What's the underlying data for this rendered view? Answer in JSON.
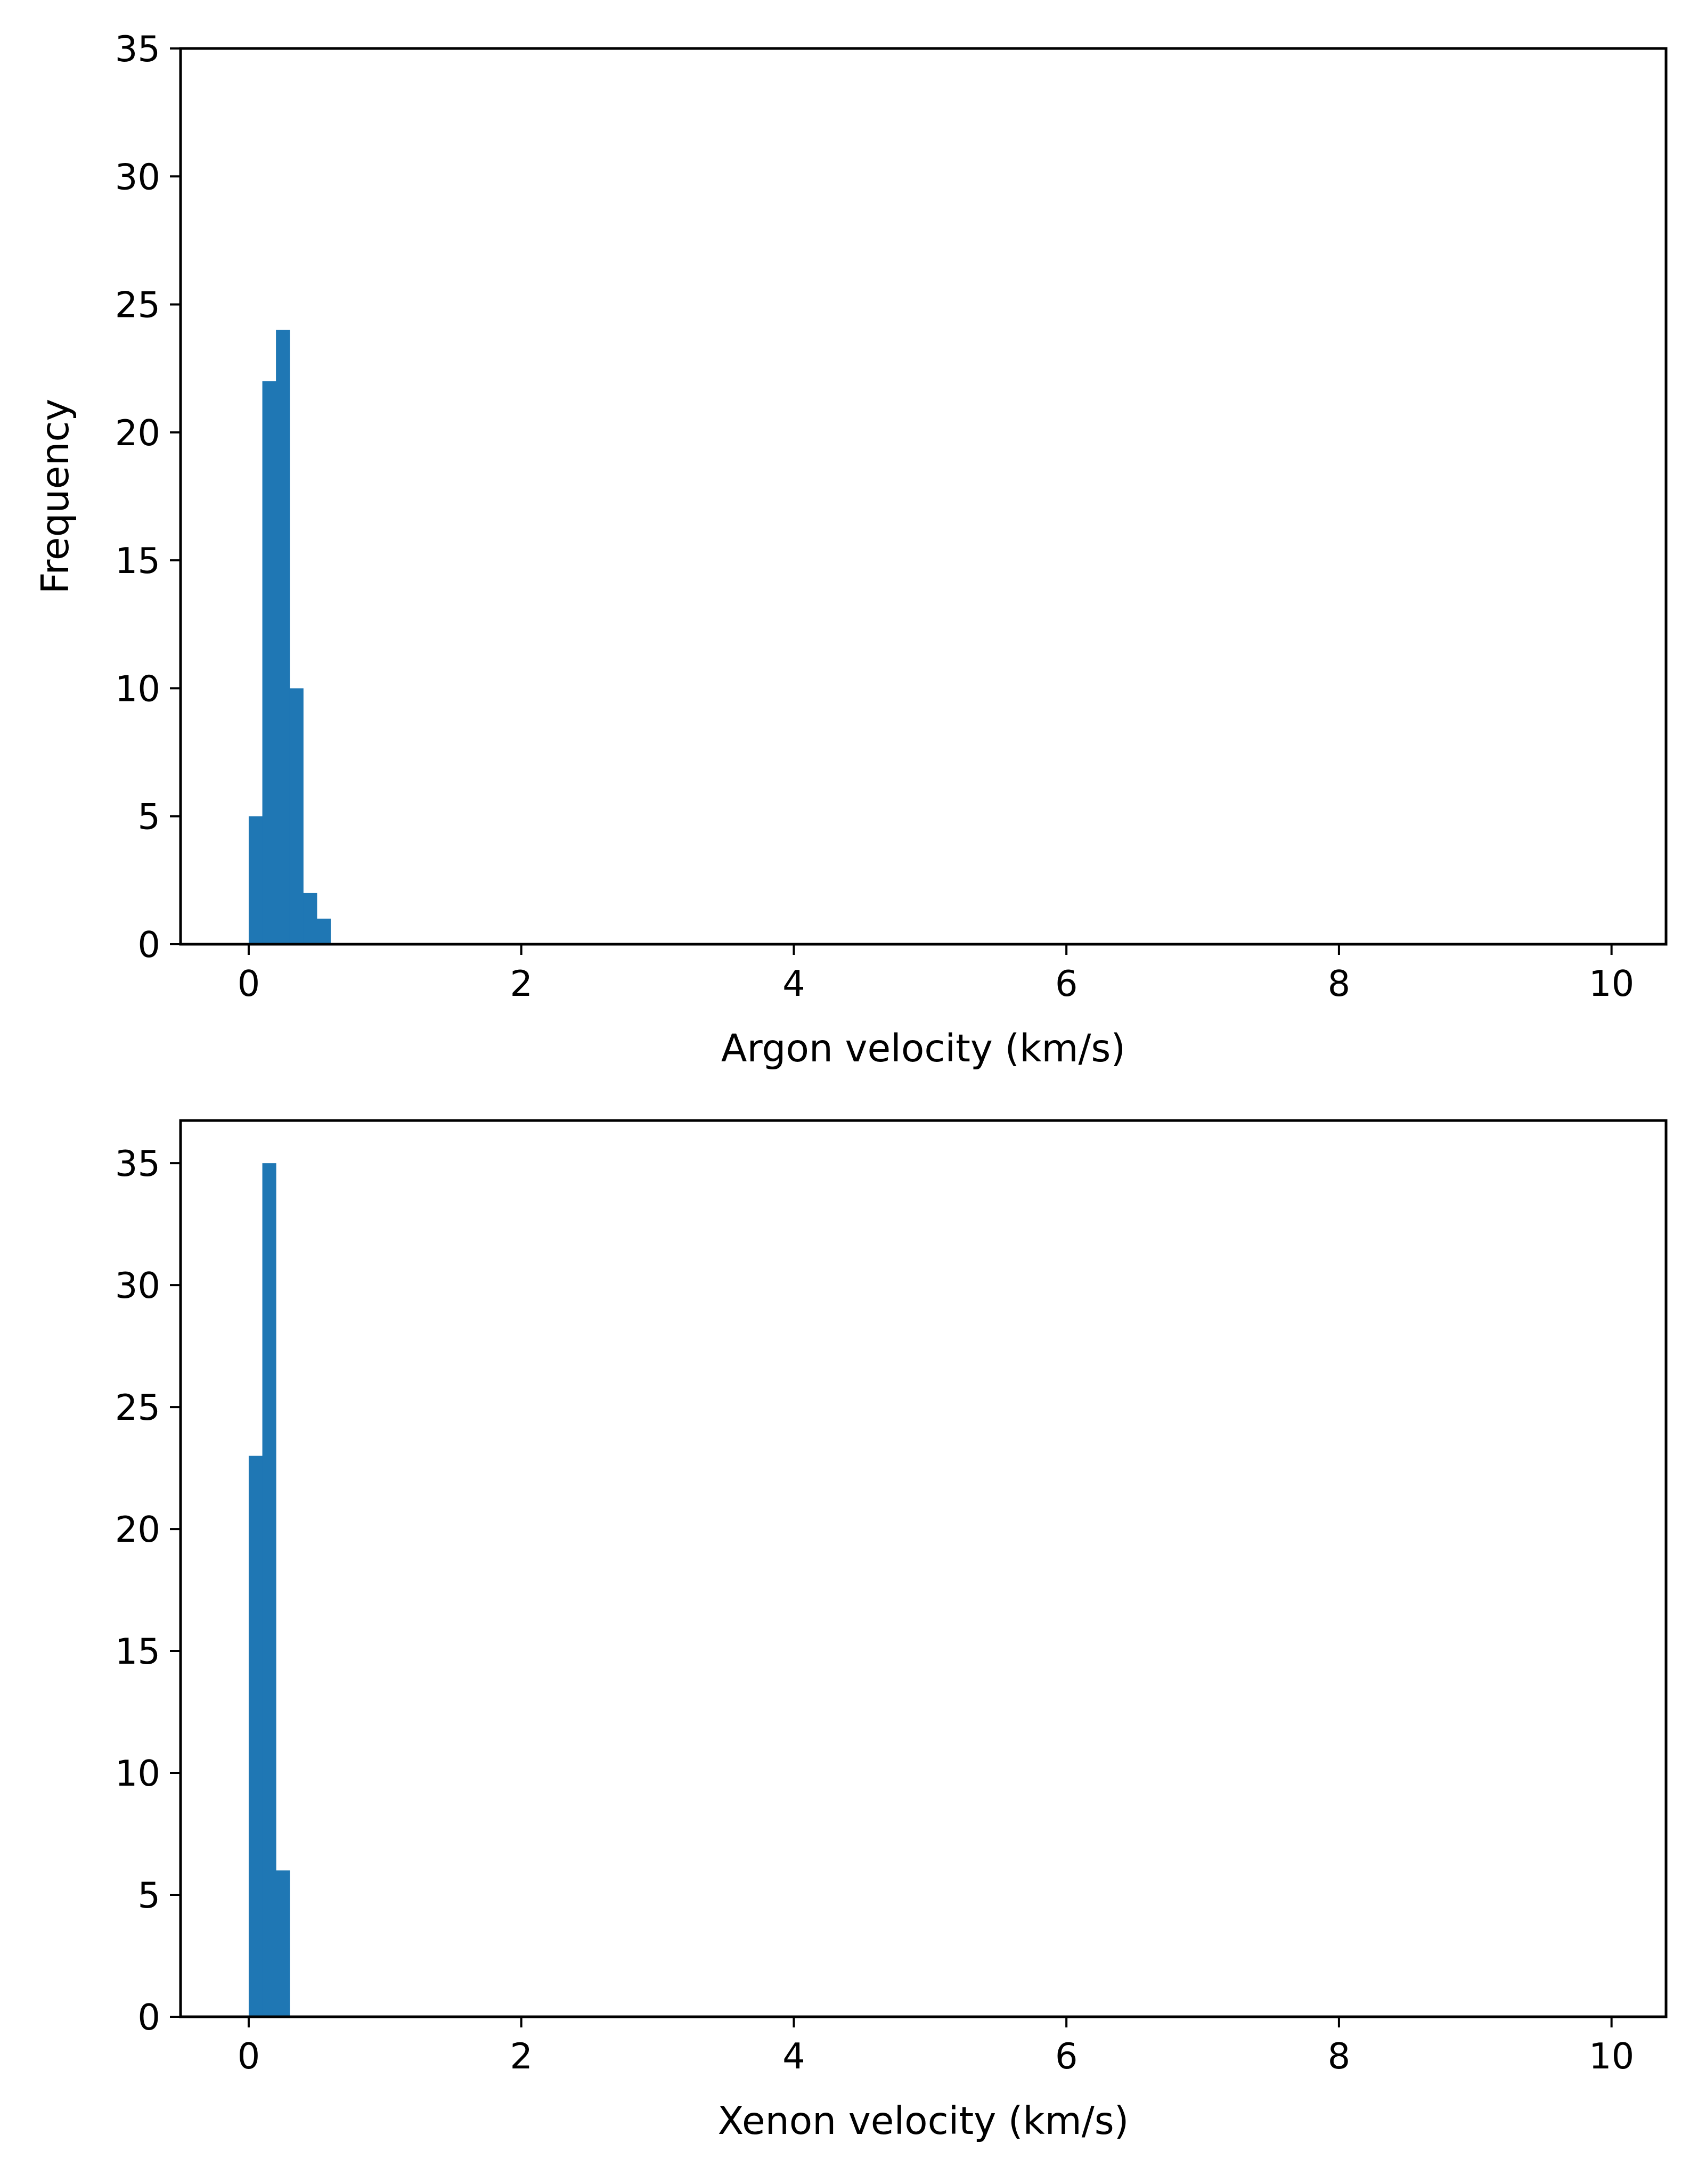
{
  "chart_data": [
    {
      "type": "bar",
      "xlabel": "Argon velocity (km/s)",
      "ylabel": "Frequency",
      "xlim": [
        -0.5,
        10.4
      ],
      "ylim": [
        0,
        35
      ],
      "xticks": [
        0,
        2,
        4,
        6,
        8,
        10
      ],
      "yticks": [
        0,
        5,
        10,
        15,
        20,
        25,
        30,
        35
      ],
      "grid": false,
      "color": "#1f77b4",
      "bin_width": 0.1,
      "bins": [
        {
          "x0": 0.0,
          "x1": 0.1,
          "value": 5
        },
        {
          "x0": 0.1,
          "x1": 0.2,
          "value": 22
        },
        {
          "x0": 0.2,
          "x1": 0.3,
          "value": 24
        },
        {
          "x0": 0.3,
          "x1": 0.4,
          "value": 10
        },
        {
          "x0": 0.4,
          "x1": 0.5,
          "value": 2
        },
        {
          "x0": 0.5,
          "x1": 0.6,
          "value": 1
        }
      ]
    },
    {
      "type": "bar",
      "xlabel": "Xenon velocity (km/s)",
      "ylabel": "",
      "xlim": [
        -0.5,
        10.4
      ],
      "ylim": [
        0,
        36.75
      ],
      "xticks": [
        0,
        2,
        4,
        6,
        8,
        10
      ],
      "yticks": [
        0,
        5,
        10,
        15,
        20,
        25,
        30,
        35
      ],
      "grid": false,
      "color": "#1f77b4",
      "bin_width": 0.1,
      "bins": [
        {
          "x0": 0.0,
          "x1": 0.1,
          "value": 23
        },
        {
          "x0": 0.1,
          "x1": 0.2,
          "value": 35
        },
        {
          "x0": 0.2,
          "x1": 0.3,
          "value": 6
        }
      ]
    }
  ]
}
